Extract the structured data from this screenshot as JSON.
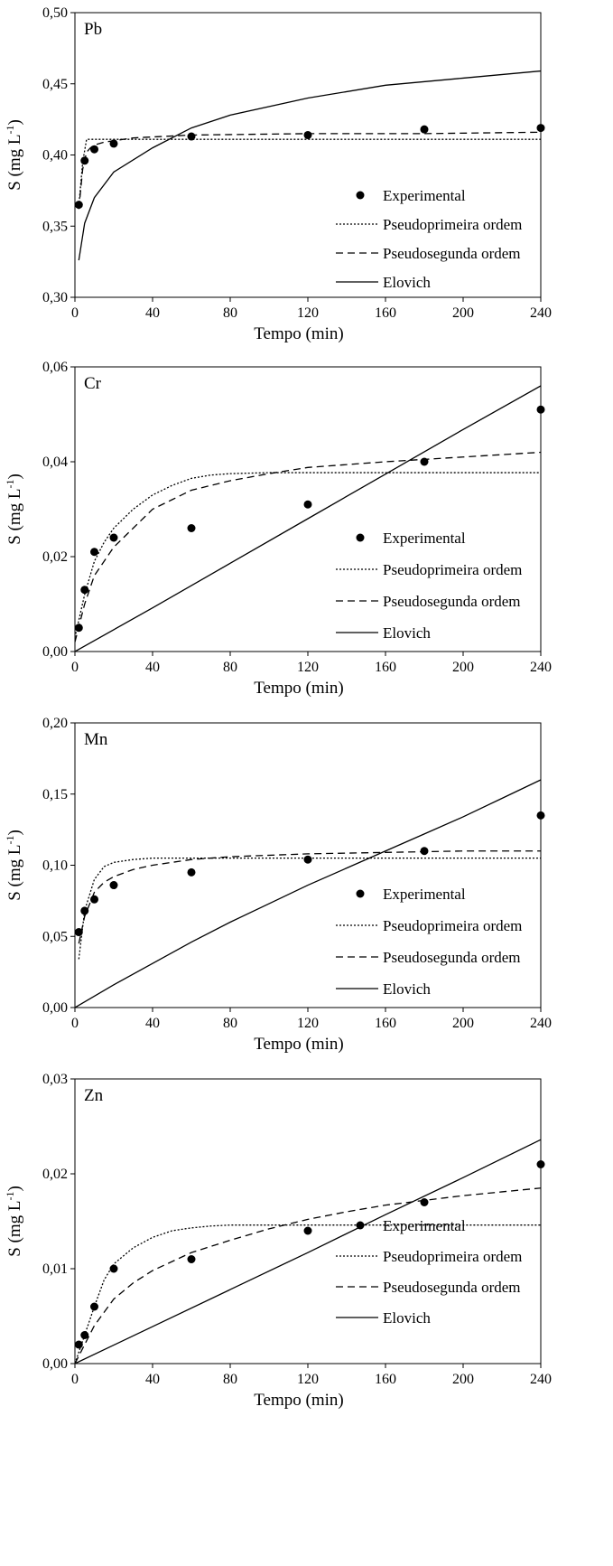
{
  "chart_data": [
    {
      "type": "scatter",
      "panel_label": "Pb",
      "xlabel": "Tempo (min)",
      "ylabel": "S (mg L",
      "ylabel_sup": "-1",
      "ylabel_close": ")",
      "xlim": [
        0,
        240
      ],
      "ylim": [
        0.3,
        0.5
      ],
      "x_ticks": [
        "0",
        "40",
        "80",
        "120",
        "160",
        "200",
        "240"
      ],
      "y_ticks": [
        "0,30",
        "0,35",
        "0,40",
        "0,45",
        "0,50"
      ],
      "legend_position": "right",
      "legend": [
        "Experimental",
        "Pseudoprimeira ordem",
        "Pseudosegunda ordem",
        "Elovich"
      ],
      "series": [
        {
          "name": "Experimental",
          "style": "points",
          "x": [
            2,
            5,
            10,
            20,
            60,
            120,
            180,
            240
          ],
          "y": [
            0.365,
            0.396,
            0.404,
            0.408,
            0.413,
            0.414,
            0.418,
            0.419
          ]
        },
        {
          "name": "Pseudoprimeira ordem",
          "style": "dotted",
          "x": [
            2,
            4,
            6,
            8,
            10,
            15,
            20,
            30,
            60,
            120,
            180,
            240
          ],
          "y": [
            0.364,
            0.395,
            0.411,
            0.411,
            0.411,
            0.411,
            0.411,
            0.411,
            0.411,
            0.411,
            0.411,
            0.411
          ]
        },
        {
          "name": "Pseudosegunda ordem",
          "style": "dashed",
          "x": [
            2,
            4,
            6,
            8,
            10,
            15,
            20,
            30,
            60,
            120,
            180,
            240
          ],
          "y": [
            0.362,
            0.39,
            0.402,
            0.405,
            0.407,
            0.409,
            0.41,
            0.412,
            0.414,
            0.415,
            0.415,
            0.416
          ]
        },
        {
          "name": "Elovich",
          "style": "solid",
          "x": [
            2,
            5,
            10,
            20,
            40,
            60,
            80,
            120,
            160,
            200,
            240
          ],
          "y": [
            0.326,
            0.352,
            0.37,
            0.388,
            0.405,
            0.419,
            0.428,
            0.44,
            0.449,
            0.454,
            0.459
          ]
        }
      ]
    },
    {
      "type": "scatter",
      "panel_label": "Cr",
      "xlabel": "Tempo (min)",
      "ylabel": "S (mg L",
      "ylabel_sup": "-1",
      "ylabel_close": ")",
      "xlim": [
        0,
        240
      ],
      "ylim": [
        0.0,
        0.06
      ],
      "x_ticks": [
        "0",
        "40",
        "80",
        "120",
        "160",
        "200",
        "240"
      ],
      "y_ticks": [
        "0,00",
        "0,02",
        "0,04",
        "0,06"
      ],
      "legend_position": "right",
      "legend": [
        "Experimental",
        "Pseudoprimeira ordem",
        "Pseudosegunda ordem",
        "Elovich"
      ],
      "series": [
        {
          "name": "Experimental",
          "style": "points",
          "x": [
            2,
            5,
            10,
            20,
            60,
            120,
            180,
            240
          ],
          "y": [
            0.005,
            0.013,
            0.021,
            0.024,
            0.026,
            0.031,
            0.04,
            0.051
          ]
        },
        {
          "name": "Pseudoprimeira ordem",
          "style": "dotted",
          "x": [
            0,
            5,
            10,
            15,
            20,
            30,
            40,
            50,
            60,
            70,
            80,
            100,
            120,
            160,
            200,
            240
          ],
          "y": [
            0.003,
            0.012,
            0.019,
            0.023,
            0.026,
            0.03,
            0.033,
            0.035,
            0.0365,
            0.0372,
            0.0375,
            0.0377,
            0.0377,
            0.0377,
            0.0377,
            0.0377
          ]
        },
        {
          "name": "Pseudosegunda ordem",
          "style": "dashed",
          "x": [
            0,
            5,
            10,
            15,
            20,
            30,
            40,
            50,
            60,
            80,
            100,
            120,
            160,
            200,
            240
          ],
          "y": [
            0.002,
            0.01,
            0.016,
            0.019,
            0.022,
            0.026,
            0.03,
            0.032,
            0.034,
            0.036,
            0.0375,
            0.0388,
            0.04,
            0.041,
            0.042
          ]
        },
        {
          "name": "Elovich",
          "style": "solid",
          "x": [
            0,
            40,
            80,
            120,
            160,
            200,
            240
          ],
          "y": [
            0.0,
            0.0092,
            0.0186,
            0.028,
            0.0374,
            0.0468,
            0.056
          ]
        }
      ]
    },
    {
      "type": "scatter",
      "panel_label": "Mn",
      "xlabel": "Tempo (min)",
      "ylabel": "S (mg L",
      "ylabel_sup": "-1",
      "ylabel_close": ")",
      "xlim": [
        0,
        240
      ],
      "ylim": [
        0.0,
        0.2
      ],
      "x_ticks": [
        "0",
        "40",
        "80",
        "120",
        "160",
        "200",
        "240"
      ],
      "y_ticks": [
        "0,00",
        "0,05",
        "0,10",
        "0,15",
        "0,20"
      ],
      "legend_position": "right",
      "legend": [
        "Experimental",
        "Pseudoprimeira ordem",
        "Pseudosegunda ordem",
        "Elovich"
      ],
      "series": [
        {
          "name": "Experimental",
          "style": "points",
          "x": [
            2,
            5,
            10,
            20,
            60,
            120,
            180,
            240
          ],
          "y": [
            0.053,
            0.068,
            0.076,
            0.086,
            0.095,
            0.104,
            0.11,
            0.135
          ]
        },
        {
          "name": "Pseudoprimeira ordem",
          "style": "dotted",
          "x": [
            2,
            5,
            10,
            15,
            20,
            30,
            40,
            60,
            80,
            120,
            160,
            200,
            240
          ],
          "y": [
            0.034,
            0.068,
            0.09,
            0.099,
            0.102,
            0.104,
            0.105,
            0.105,
            0.105,
            0.105,
            0.105,
            0.105,
            0.105
          ]
        },
        {
          "name": "Pseudosegunda ordem",
          "style": "dashed",
          "x": [
            2,
            5,
            10,
            15,
            20,
            30,
            40,
            60,
            80,
            120,
            160,
            200,
            240
          ],
          "y": [
            0.045,
            0.064,
            0.081,
            0.088,
            0.092,
            0.097,
            0.1,
            0.104,
            0.106,
            0.108,
            0.109,
            0.11,
            0.11
          ]
        },
        {
          "name": "Elovich",
          "style": "solid",
          "x": [
            0,
            20,
            40,
            60,
            80,
            100,
            120,
            140,
            160,
            180,
            200,
            220,
            240
          ],
          "y": [
            0.0,
            0.016,
            0.031,
            0.046,
            0.06,
            0.073,
            0.086,
            0.098,
            0.11,
            0.122,
            0.134,
            0.147,
            0.16
          ]
        }
      ]
    },
    {
      "type": "scatter",
      "panel_label": "Zn",
      "xlabel": "Tempo (min)",
      "ylabel": "S (mg L",
      "ylabel_sup": "-1",
      "ylabel_close": ")",
      "xlim": [
        0,
        240
      ],
      "ylim": [
        0.0,
        0.03
      ],
      "x_ticks": [
        "0",
        "40",
        "80",
        "120",
        "160",
        "200",
        "240"
      ],
      "y_ticks": [
        "0,00",
        "0,01",
        "0,02",
        "0,03"
      ],
      "legend_position": "right",
      "legend": [
        "Experimental",
        "Pseudoprimeira ordem",
        "Pseudosegunda ordem",
        "Elovich"
      ],
      "series": [
        {
          "name": "Experimental",
          "style": "points",
          "x": [
            2,
            5,
            10,
            20,
            60,
            120,
            180,
            240
          ],
          "y": [
            0.002,
            0.003,
            0.006,
            0.01,
            0.011,
            0.014,
            0.017,
            0.021
          ]
        },
        {
          "name": "Pseudoprimeira ordem",
          "style": "dotted",
          "x": [
            0,
            5,
            10,
            15,
            20,
            30,
            40,
            50,
            60,
            70,
            80,
            100,
            120,
            160,
            200,
            240
          ],
          "y": [
            0.0,
            0.003,
            0.006,
            0.0088,
            0.0105,
            0.0122,
            0.0133,
            0.014,
            0.0143,
            0.0145,
            0.0146,
            0.0146,
            0.0146,
            0.0146,
            0.0146,
            0.0146
          ]
        },
        {
          "name": "Pseudosegunda ordem",
          "style": "dashed",
          "x": [
            0,
            5,
            10,
            20,
            30,
            40,
            60,
            80,
            100,
            120,
            140,
            160,
            180,
            200,
            220,
            240
          ],
          "y": [
            0.0,
            0.002,
            0.004,
            0.0068,
            0.0085,
            0.0098,
            0.0117,
            0.013,
            0.0142,
            0.0152,
            0.016,
            0.0167,
            0.0172,
            0.0177,
            0.0181,
            0.0185
          ]
        },
        {
          "name": "Elovich",
          "style": "solid",
          "x": [
            0,
            40,
            80,
            120,
            160,
            200,
            240
          ],
          "y": [
            0.0,
            0.0039,
            0.0078,
            0.0117,
            0.0157,
            0.0196,
            0.0236
          ]
        }
      ]
    }
  ]
}
